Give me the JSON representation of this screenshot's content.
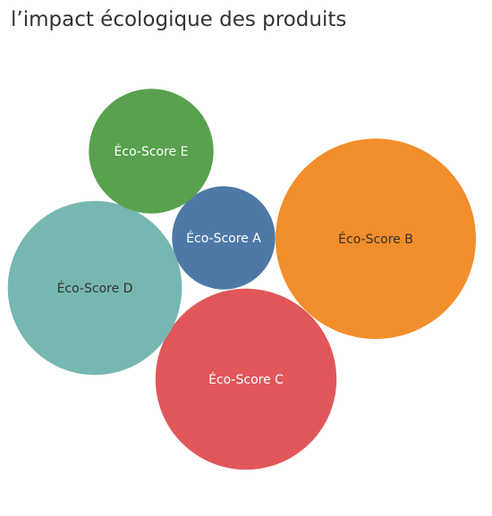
{
  "chart_data": {
    "type": "bubble",
    "title": "l’impact écologique des produits",
    "series": [
      {
        "name": "Éco-Score A",
        "value": 13,
        "color": "#4e79a7",
        "label_color": "#ffffff"
      },
      {
        "name": "Éco-Score B",
        "value": 49,
        "color": "#f28e2b",
        "label_color": "#333333"
      },
      {
        "name": "Éco-Score C",
        "value": 40,
        "color": "#e15759",
        "label_color": "#ffffff"
      },
      {
        "name": "Éco-Score D",
        "value": 37,
        "color": "#76b7b2",
        "label_color": "#333333"
      },
      {
        "name": "Éco-Score E",
        "value": 19,
        "color": "#59a14f",
        "label_color": "#ffffff"
      }
    ]
  }
}
